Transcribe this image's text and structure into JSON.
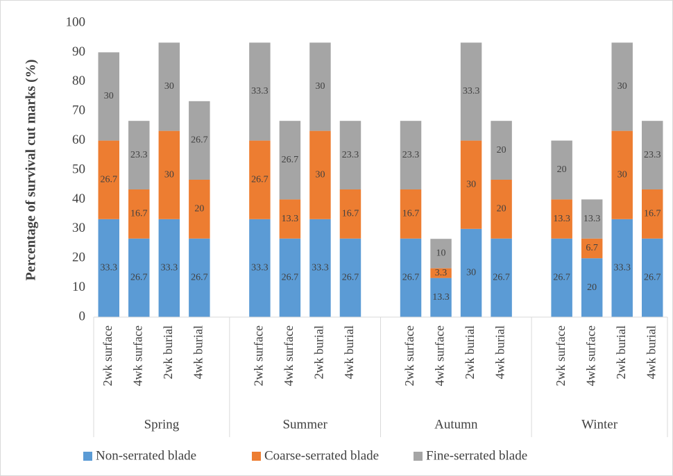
{
  "chart_data": {
    "type": "stacked-bar",
    "y_label": "Percentage of survival cut marks (%)",
    "categories": [
      "2wk surface",
      "4wk surface",
      "2wk burial",
      "4wk burial",
      "2wk surface",
      "4wk surface",
      "2wk burial",
      "4wk burial",
      "2wk surface",
      "4wk surface",
      "2wk burial",
      "4wk burial",
      "2wk surface",
      "4wk surface",
      "2wk burial",
      "4wk burial"
    ],
    "groups": [
      "Spring",
      "Summer",
      "Autumn",
      "Winter"
    ],
    "series": [
      {
        "name": "Non-serrated blade",
        "color": "#5b9bd5",
        "values": [
          33.3,
          26.7,
          33.3,
          26.7,
          33.3,
          26.7,
          33.3,
          26.7,
          26.7,
          13.3,
          30,
          26.7,
          26.7,
          20,
          33.3,
          26.7
        ]
      },
      {
        "name": "Coarse-serrated blade",
        "color": "#ed7d31",
        "values": [
          26.7,
          16.7,
          30,
          20,
          26.7,
          13.3,
          30,
          16.7,
          16.7,
          3.3,
          30,
          20,
          13.3,
          6.7,
          30,
          16.7
        ]
      },
      {
        "name": "Fine-serrated blade",
        "color": "#a5a5a5",
        "values": [
          30,
          23.3,
          30,
          26.7,
          33.3,
          26.7,
          30,
          23.3,
          23.3,
          10,
          33.3,
          20,
          20,
          13.3,
          30,
          23.3
        ]
      }
    ],
    "ylim": [
      0,
      100
    ],
    "yticks": [
      0,
      10,
      20,
      30,
      40,
      50,
      60,
      70,
      80,
      90,
      100
    ],
    "legend": "bottom",
    "data_labels": true
  }
}
